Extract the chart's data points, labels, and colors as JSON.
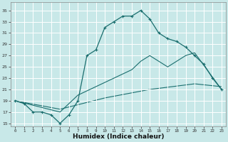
{
  "xlabel": "Humidex (Indice chaleur)",
  "xlim": [
    -0.5,
    23.5
  ],
  "ylim": [
    14.5,
    36.5
  ],
  "yticks": [
    15,
    17,
    19,
    21,
    23,
    25,
    27,
    29,
    31,
    33,
    35
  ],
  "xticks": [
    0,
    1,
    2,
    3,
    4,
    5,
    6,
    7,
    8,
    9,
    10,
    11,
    12,
    13,
    14,
    15,
    16,
    17,
    18,
    19,
    20,
    21,
    22,
    23
  ],
  "bg_color": "#c8e8e8",
  "grid_color": "#b0d8d8",
  "line_color": "#1a6e6e",
  "curve1_x": [
    0,
    1,
    2,
    3,
    4,
    5,
    6,
    7,
    8,
    9,
    10,
    11,
    12,
    13,
    14,
    15,
    16,
    17,
    18,
    19,
    20,
    21,
    22,
    23
  ],
  "curve1_y": [
    19,
    18.5,
    17,
    17,
    16.5,
    15,
    16.5,
    19,
    27,
    28,
    32,
    33,
    34,
    34,
    35,
    33.5,
    31,
    30,
    29.5,
    28.5,
    27,
    25.5,
    23,
    21
  ],
  "curve2_x": [
    0,
    5,
    7,
    9,
    11,
    13,
    14,
    15,
    17,
    19,
    20,
    23
  ],
  "curve2_y": [
    19,
    17,
    20,
    21.5,
    23,
    24.5,
    26,
    27,
    25,
    27,
    27.5,
    21
  ],
  "curve3_x": [
    0,
    5,
    10,
    15,
    20,
    23
  ],
  "curve3_y": [
    19,
    17.5,
    19.5,
    21,
    22,
    21.5
  ]
}
